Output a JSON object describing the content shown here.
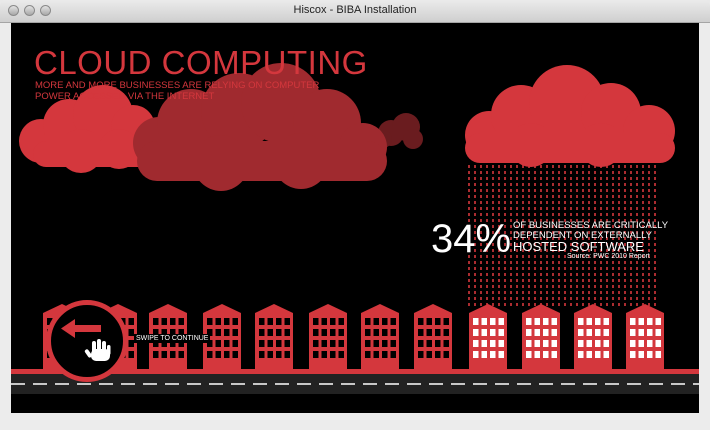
{
  "window": {
    "title": "Hiscox - BIBA Installation"
  },
  "headline": {
    "title": "CLOUD COMPUTING",
    "subtitle": "MORE AND MORE BUSINESSES ARE RELYING ON COMPUTER POWER ACCESSED VIA THE INTERNET"
  },
  "stat": {
    "value": "34%",
    "line1": "OF BUSINESSES ARE CRITICALLY",
    "line2": "DEPENDENT ON EXTERNALLY",
    "line3": "HOSTED SOFTWARE",
    "source": "Source: PWC 2010 Report",
    "highlight_fraction": 0.34
  },
  "swipe": {
    "label": "SWIPE TO CONTINUE"
  },
  "colors": {
    "accent": "#d4373d",
    "dark_red": "#a02a2f",
    "background": "#000000",
    "white": "#ffffff"
  },
  "icons": [
    "left-arrow-icon",
    "hand-icon",
    "cloud-icon",
    "building-icon"
  ]
}
